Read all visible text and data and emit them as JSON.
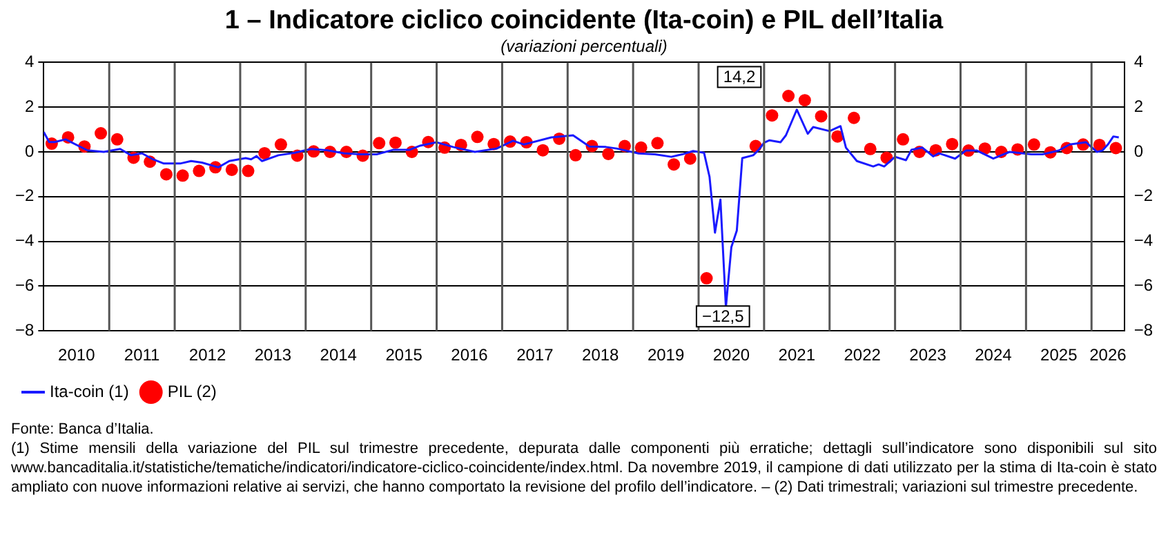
{
  "chart_data": {
    "type": "line",
    "title": "1 – Indicatore ciclico coincidente (Ita-coin) e PIL dell’Italia",
    "subtitle": "(variazioni percentuali)",
    "xlim": [
      "2010-01",
      "2026-07"
    ],
    "xticks": [
      {
        "value": "2010-07",
        "label": "2010"
      },
      {
        "value": "2011-01",
        "label": null
      },
      {
        "value": "2011-07",
        "label": "2011"
      },
      {
        "value": "2012-01",
        "label": null
      },
      {
        "value": "2012-07",
        "label": "2012"
      },
      {
        "value": "2013-01",
        "label": null
      },
      {
        "value": "2013-07",
        "label": "2013"
      },
      {
        "value": "2014-01",
        "label": null
      },
      {
        "value": "2014-07",
        "label": "2014"
      },
      {
        "value": "2015-01",
        "label": null
      },
      {
        "value": "2015-07",
        "label": "2015"
      },
      {
        "value": "2016-01",
        "label": null
      },
      {
        "value": "2016-07",
        "label": "2016"
      },
      {
        "value": "2017-01",
        "label": null
      },
      {
        "value": "2017-07",
        "label": "2017"
      },
      {
        "value": "2018-01",
        "label": null
      },
      {
        "value": "2018-07",
        "label": "2018"
      },
      {
        "value": "2019-01",
        "label": null
      },
      {
        "value": "2019-07",
        "label": "2019"
      },
      {
        "value": "2020-01",
        "label": null
      },
      {
        "value": "2020-07",
        "label": "2020"
      },
      {
        "value": "2021-01",
        "label": null
      },
      {
        "value": "2021-07",
        "label": "2021"
      },
      {
        "value": "2022-01",
        "label": null
      },
      {
        "value": "2022-07",
        "label": "2022"
      },
      {
        "value": "2023-01",
        "label": null
      },
      {
        "value": "2023-07",
        "label": "2023"
      },
      {
        "value": "2024-01",
        "label": null
      },
      {
        "value": "2024-07",
        "label": "2024"
      },
      {
        "value": "2025-01",
        "label": null
      },
      {
        "value": "2025-07",
        "label": "2025"
      },
      {
        "value": "2026-01",
        "label": null
      },
      {
        "value": "2026-04",
        "label": "2026"
      }
    ],
    "ylim": [
      -8,
      4
    ],
    "yticks": [
      {
        "value": -8,
        "label": "−8"
      },
      {
        "value": -6,
        "label": "−6"
      },
      {
        "value": -4,
        "label": "−4"
      },
      {
        "value": -2,
        "label": "−2"
      },
      0,
      2,
      4
    ],
    "y2lim": [
      -8,
      4
    ],
    "y2ticks": [
      {
        "value": -8,
        "label": "−8"
      },
      {
        "value": -6,
        "label": "−6"
      },
      {
        "value": -4,
        "label": "−4"
      },
      {
        "value": -2,
        "label": "−2"
      },
      0,
      2,
      4
    ],
    "grid": true,
    "legend": "bottom",
    "series": [
      {
        "name": "Ita-coin (1)",
        "color": "#1a1aff",
        "marker": "none",
        "line_style": "solid",
        "x": [
          "2010-01",
          "2010-02",
          "2010-03",
          "2010-05",
          "2010-09",
          "2010-12",
          "2011-03",
          "2011-05",
          "2011-07",
          "2011-09",
          "2011-11",
          "2012-02",
          "2012-04",
          "2012-06",
          "2012-09",
          "2012-11",
          "2013-02",
          "2013-03",
          "2013-04",
          "2013-05",
          "2013-08",
          "2013-11",
          "2014-02",
          "2014-05",
          "2014-08",
          "2014-11",
          "2015-02",
          "2015-05",
          "2015-08",
          "2015-10",
          "2016-01",
          "2016-04",
          "2016-08",
          "2016-12",
          "2017-03",
          "2017-05",
          "2017-10",
          "2018-02",
          "2018-05",
          "2018-08",
          "2018-10",
          "2019-02",
          "2019-05",
          "2019-08",
          "2019-10",
          "2019-12",
          "2020-02",
          "2020-03",
          "2020-04",
          "2020-05",
          "2020-06",
          "2020-07",
          "2020-08",
          "2020-09",
          "2020-11",
          "2020-12",
          "2021-01",
          "2021-02",
          "2021-04",
          "2021-05",
          "2021-07",
          "2021-09",
          "2021-10",
          "2022-01",
          "2022-03",
          "2022-04",
          "2022-06",
          "2022-09",
          "2022-10",
          "2022-11",
          "2023-01",
          "2023-03",
          "2023-04",
          "2023-06",
          "2023-08",
          "2023-09",
          "2023-12",
          "2024-02",
          "2024-04",
          "2024-07",
          "2024-10",
          "2025-02",
          "2025-04",
          "2025-07",
          "2025-09",
          "2025-12",
          "2026-02",
          "2026-03",
          "2026-04",
          "2026-05",
          "2026-06"
        ],
        "values": [
          0.89,
          0.44,
          0.44,
          0.56,
          0.07,
          0,
          0.13,
          -0.15,
          -0.06,
          -0.33,
          -0.52,
          -0.52,
          -0.41,
          -0.48,
          -0.69,
          -0.41,
          -0.28,
          -0.33,
          -0.19,
          -0.41,
          -0.15,
          -0.04,
          0.13,
          0.07,
          -0.06,
          -0.11,
          -0.11,
          0.09,
          0.09,
          0.28,
          0.43,
          0.22,
          0,
          0.15,
          0.5,
          0.33,
          0.65,
          0.74,
          0.24,
          0.22,
          0.15,
          -0.07,
          -0.11,
          -0.22,
          -0.11,
          0.04,
          -0.04,
          -1.11,
          -3.61,
          -2.13,
          -6.94,
          -4.26,
          -3.52,
          -0.28,
          -0.15,
          0.09,
          0.41,
          0.52,
          0.43,
          0.74,
          1.89,
          0.81,
          1.11,
          0.93,
          1.15,
          0.19,
          -0.41,
          -0.65,
          -0.56,
          -0.65,
          -0.22,
          -0.37,
          0.09,
          0.19,
          -0.2,
          -0.06,
          -0.3,
          0.06,
          0.06,
          -0.3,
          0,
          -0.11,
          -0.11,
          0.06,
          0.33,
          0.43,
          0,
          0.06,
          0.33,
          0.69,
          0.65
        ]
      },
      {
        "name": "PIL (2)",
        "type": "scatter",
        "color": "#ff0000",
        "marker": "circle",
        "x": [
          "2010-02-15",
          "2010-05-15",
          "2010-08-15",
          "2010-11-15",
          "2011-02-15",
          "2011-05-15",
          "2011-08-15",
          "2011-11-15",
          "2012-02-15",
          "2012-05-15",
          "2012-08-15",
          "2012-11-15",
          "2013-02-15",
          "2013-05-15",
          "2013-08-15",
          "2013-11-15",
          "2014-02-15",
          "2014-05-15",
          "2014-08-15",
          "2014-11-15",
          "2015-02-15",
          "2015-05-15",
          "2015-08-15",
          "2015-11-15",
          "2016-02-15",
          "2016-05-15",
          "2016-08-15",
          "2016-11-15",
          "2017-02-15",
          "2017-05-15",
          "2017-08-15",
          "2017-11-15",
          "2018-02-15",
          "2018-05-15",
          "2018-08-15",
          "2018-11-15",
          "2019-02-15",
          "2019-05-15",
          "2019-08-15",
          "2019-11-15",
          "2020-02-15",
          "2020-05-15",
          "2020-08-15",
          "2020-11-15",
          "2021-02-15",
          "2021-05-15",
          "2021-08-15",
          "2021-11-15",
          "2022-02-15",
          "2022-05-15",
          "2022-08-15",
          "2022-11-15",
          "2023-02-15",
          "2023-05-15",
          "2023-08-15",
          "2023-11-15",
          "2024-02-15",
          "2024-05-15",
          "2024-08-15",
          "2024-11-15",
          "2025-02-15",
          "2025-05-15",
          "2025-08-15",
          "2025-11-15",
          "2026-02-15",
          "2026-05-15"
        ],
        "values": [
          0.37,
          0.65,
          0.24,
          0.83,
          0.56,
          -0.26,
          -0.44,
          -1.0,
          -1.06,
          -0.85,
          -0.69,
          -0.8,
          -0.85,
          -0.06,
          0.33,
          -0.17,
          0.02,
          0,
          0,
          -0.17,
          0.39,
          0.41,
          0,
          0.44,
          0.19,
          0.31,
          0.67,
          0.35,
          0.46,
          0.43,
          0.07,
          0.59,
          -0.15,
          0.26,
          -0.09,
          0.26,
          0.19,
          0.39,
          -0.56,
          -0.3,
          -5.65,
          null,
          null,
          0.26,
          1.63,
          2.5,
          2.31,
          1.59,
          0.69,
          1.52,
          0.13,
          -0.26,
          0.56,
          0,
          0.07,
          0.35,
          0.06,
          0.15,
          0,
          0.11,
          0.33,
          -0.02,
          0.17,
          0.33,
          0.31,
          0.17
        ]
      }
    ],
    "annotations": [
      "−12,5",
      "14,2",
      "Fonte: Banca d’Italia.",
      "(1) Stime mensili della variazione del PIL sul trimestre precedente, depurata dalle componenti più erratiche; dettagli sull’indicatore sono disponibili sul sito www.bancaditalia.it/statistiche/tematiche/indicatori/indicatore-ciclico-coincidente/index.html. Da novembre 2019, il campione di dati utilizzato per la stima di Ita-coin è stato ampliato con nuove informazioni relative ai servizi, che hanno comportato la revisione del profilo dell’indicatore. – (2) Dati trimestrali; variazioni sul trimestre precedente."
    ]
  }
}
